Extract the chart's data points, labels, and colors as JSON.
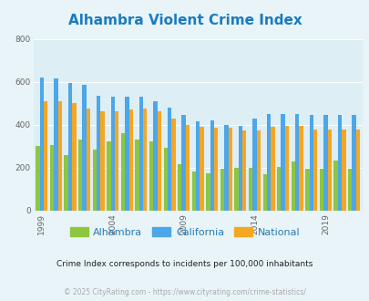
{
  "title": "Alhambra Violent Crime Index",
  "title_color": "#1a7bbf",
  "subtitle": "Crime Index corresponds to incidents per 100,000 inhabitants",
  "footer": "© 2025 CityRating.com - https://www.cityrating.com/crime-statistics/",
  "years": [
    1999,
    2000,
    2001,
    2002,
    2003,
    2004,
    2005,
    2006,
    2007,
    2008,
    2009,
    2010,
    2011,
    2012,
    2013,
    2014,
    2015,
    2016,
    2017,
    2018,
    2019,
    2020,
    2021
  ],
  "alhambra": [
    300,
    305,
    260,
    330,
    285,
    325,
    360,
    330,
    325,
    295,
    215,
    185,
    175,
    195,
    200,
    200,
    170,
    205,
    230,
    195,
    195,
    235,
    195
  ],
  "california": [
    620,
    615,
    595,
    585,
    535,
    530,
    530,
    530,
    510,
    480,
    445,
    415,
    420,
    400,
    395,
    430,
    450,
    450,
    450,
    445,
    445,
    445,
    445
  ],
  "national": [
    510,
    510,
    500,
    475,
    465,
    465,
    470,
    475,
    465,
    430,
    400,
    390,
    385,
    385,
    375,
    375,
    390,
    395,
    395,
    380,
    380,
    380,
    380
  ],
  "alhambra_color": "#8dc63f",
  "california_color": "#4da6e8",
  "national_color": "#f5a623",
  "bg_color": "#e8f4f8",
  "plot_bg": "#ddeef5",
  "ylim": [
    0,
    800
  ],
  "yticks": [
    0,
    200,
    400,
    600,
    800
  ],
  "grid_color": "#ffffff",
  "tick_label_color": "#666666",
  "legend_label_color": "#2a7ab0",
  "subtitle_color": "#222222",
  "footer_color": "#aaaaaa"
}
